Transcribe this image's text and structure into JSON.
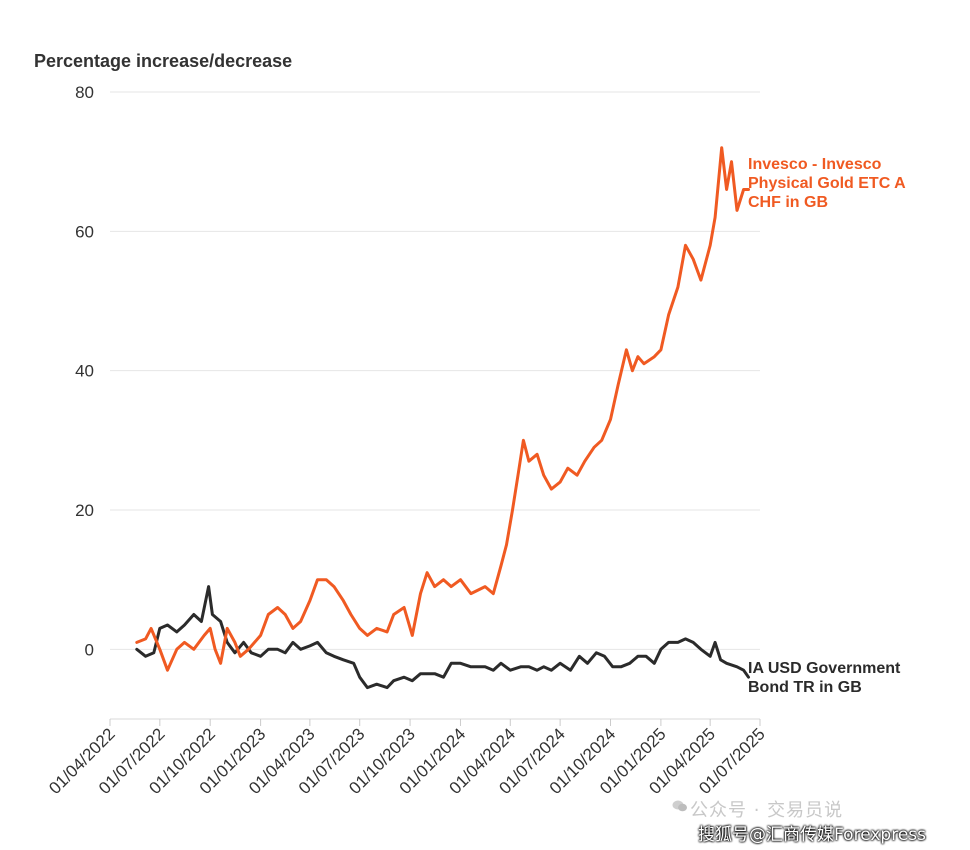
{
  "chart_data": {
    "type": "line",
    "ylabel": "Percentage increase/decrease",
    "ylim": [
      -10,
      80
    ],
    "yticks": [
      0,
      20,
      40,
      60,
      80
    ],
    "x_start": "01/04/2022",
    "x_end": "01/07/2025",
    "xticks": [
      "01/04/2022",
      "01/07/2022",
      "01/10/2022",
      "01/01/2023",
      "01/04/2023",
      "01/07/2023",
      "01/10/2023",
      "01/01/2024",
      "01/04/2024",
      "01/07/2024",
      "01/10/2024",
      "01/01/2025",
      "01/04/2025",
      "01/07/2025"
    ],
    "grid": "horizontal",
    "legend": "direct labels at line ends (right)",
    "series": [
      {
        "name": "Invesco - Invesco Physical Gold ETC A CHF in GB",
        "label_lines": [
          "Invesco - Invesco",
          "Physical Gold ETC A",
          "CHF in GB"
        ],
        "color": "#f05a22",
        "points": [
          [
            "2022-05-20",
            1
          ],
          [
            "2022-06-05",
            1.5
          ],
          [
            "2022-06-15",
            3
          ],
          [
            "2022-07-01",
            0
          ],
          [
            "2022-07-15",
            -3
          ],
          [
            "2022-08-01",
            0
          ],
          [
            "2022-08-15",
            1
          ],
          [
            "2022-09-01",
            0
          ],
          [
            "2022-09-20",
            2
          ],
          [
            "2022-10-01",
            3
          ],
          [
            "2022-10-10",
            0
          ],
          [
            "2022-10-20",
            -2
          ],
          [
            "2022-11-01",
            3
          ],
          [
            "2022-11-15",
            1
          ],
          [
            "2022-11-25",
            -1
          ],
          [
            "2022-12-10",
            0
          ],
          [
            "2023-01-01",
            2
          ],
          [
            "2023-01-15",
            5
          ],
          [
            "2023-02-01",
            6
          ],
          [
            "2023-02-15",
            5
          ],
          [
            "2023-03-01",
            3
          ],
          [
            "2023-03-15",
            4
          ],
          [
            "2023-04-01",
            7
          ],
          [
            "2023-04-15",
            10
          ],
          [
            "2023-05-01",
            10
          ],
          [
            "2023-05-15",
            9
          ],
          [
            "2023-06-01",
            7
          ],
          [
            "2023-06-15",
            5
          ],
          [
            "2023-07-01",
            3
          ],
          [
            "2023-07-15",
            2
          ],
          [
            "2023-08-01",
            3
          ],
          [
            "2023-08-20",
            2.5
          ],
          [
            "2023-09-01",
            5
          ],
          [
            "2023-09-20",
            6
          ],
          [
            "2023-10-05",
            2
          ],
          [
            "2023-10-20",
            8
          ],
          [
            "2023-11-01",
            11
          ],
          [
            "2023-11-15",
            9
          ],
          [
            "2023-12-01",
            10
          ],
          [
            "2023-12-15",
            9
          ],
          [
            "2024-01-01",
            10
          ],
          [
            "2024-01-20",
            8
          ],
          [
            "2024-02-15",
            9
          ],
          [
            "2024-03-01",
            8
          ],
          [
            "2024-03-15",
            12
          ],
          [
            "2024-03-25",
            15
          ],
          [
            "2024-04-05",
            20
          ],
          [
            "2024-04-15",
            25
          ],
          [
            "2024-04-25",
            30
          ],
          [
            "2024-05-05",
            27
          ],
          [
            "2024-05-20",
            28
          ],
          [
            "2024-06-01",
            25
          ],
          [
            "2024-06-15",
            23
          ],
          [
            "2024-07-01",
            24
          ],
          [
            "2024-07-15",
            26
          ],
          [
            "2024-08-01",
            25
          ],
          [
            "2024-08-15",
            27
          ],
          [
            "2024-09-01",
            29
          ],
          [
            "2024-09-15",
            30
          ],
          [
            "2024-10-01",
            33
          ],
          [
            "2024-10-15",
            38
          ],
          [
            "2024-10-30",
            43
          ],
          [
            "2024-11-10",
            40
          ],
          [
            "2024-11-20",
            42
          ],
          [
            "2024-12-01",
            41
          ],
          [
            "2024-12-20",
            42
          ],
          [
            "2025-01-01",
            43
          ],
          [
            "2025-01-15",
            48
          ],
          [
            "2025-02-01",
            52
          ],
          [
            "2025-02-15",
            58
          ],
          [
            "2025-03-01",
            56
          ],
          [
            "2025-03-15",
            53
          ],
          [
            "2025-04-01",
            58
          ],
          [
            "2025-04-10",
            62
          ],
          [
            "2025-04-22",
            72
          ],
          [
            "2025-05-01",
            66
          ],
          [
            "2025-05-10",
            70
          ],
          [
            "2025-05-20",
            63
          ],
          [
            "2025-06-01",
            66
          ],
          [
            "2025-06-10",
            66
          ]
        ]
      },
      {
        "name": "IA USD Government Bond TR in GB",
        "label_lines": [
          "IA USD Government",
          "Bond TR in GB"
        ],
        "color": "#2b2b2b",
        "points": [
          [
            "2022-05-20",
            0
          ],
          [
            "2022-06-05",
            -1
          ],
          [
            "2022-06-20",
            -0.5
          ],
          [
            "2022-07-01",
            3
          ],
          [
            "2022-07-15",
            3.5
          ],
          [
            "2022-08-01",
            2.5
          ],
          [
            "2022-08-15",
            3.5
          ],
          [
            "2022-09-01",
            5
          ],
          [
            "2022-09-15",
            4
          ],
          [
            "2022-09-28",
            9
          ],
          [
            "2022-10-05",
            5
          ],
          [
            "2022-10-20",
            4
          ],
          [
            "2022-11-01",
            1
          ],
          [
            "2022-11-15",
            -0.5
          ],
          [
            "2022-12-01",
            1
          ],
          [
            "2022-12-15",
            -0.5
          ],
          [
            "2023-01-01",
            -1
          ],
          [
            "2023-01-15",
            0
          ],
          [
            "2023-02-01",
            0
          ],
          [
            "2023-02-15",
            -0.5
          ],
          [
            "2023-03-01",
            1
          ],
          [
            "2023-03-15",
            0
          ],
          [
            "2023-04-01",
            0.5
          ],
          [
            "2023-04-15",
            1
          ],
          [
            "2023-05-01",
            -0.5
          ],
          [
            "2023-05-15",
            -1
          ],
          [
            "2023-06-01",
            -1.5
          ],
          [
            "2023-06-20",
            -2
          ],
          [
            "2023-07-01",
            -4
          ],
          [
            "2023-07-15",
            -5.5
          ],
          [
            "2023-08-01",
            -5
          ],
          [
            "2023-08-20",
            -5.5
          ],
          [
            "2023-09-01",
            -4.5
          ],
          [
            "2023-09-20",
            -4
          ],
          [
            "2023-10-05",
            -4.5
          ],
          [
            "2023-10-20",
            -3.5
          ],
          [
            "2023-11-01",
            -3.5
          ],
          [
            "2023-11-15",
            -3.5
          ],
          [
            "2023-12-01",
            -4
          ],
          [
            "2023-12-15",
            -2
          ],
          [
            "2024-01-01",
            -2
          ],
          [
            "2024-01-20",
            -2.5
          ],
          [
            "2024-02-15",
            -2.5
          ],
          [
            "2024-03-01",
            -3
          ],
          [
            "2024-03-15",
            -2
          ],
          [
            "2024-04-01",
            -3
          ],
          [
            "2024-04-20",
            -2.5
          ],
          [
            "2024-05-05",
            -2.5
          ],
          [
            "2024-05-20",
            -3
          ],
          [
            "2024-06-01",
            -2.5
          ],
          [
            "2024-06-15",
            -3
          ],
          [
            "2024-07-01",
            -2
          ],
          [
            "2024-07-20",
            -3
          ],
          [
            "2024-08-05",
            -1
          ],
          [
            "2024-08-20",
            -2
          ],
          [
            "2024-09-05",
            -0.5
          ],
          [
            "2024-09-20",
            -1
          ],
          [
            "2024-10-05",
            -2.5
          ],
          [
            "2024-10-20",
            -2.5
          ],
          [
            "2024-11-05",
            -2
          ],
          [
            "2024-11-20",
            -1
          ],
          [
            "2024-12-05",
            -1
          ],
          [
            "2024-12-20",
            -2
          ],
          [
            "2025-01-01",
            0
          ],
          [
            "2025-01-15",
            1
          ],
          [
            "2025-02-01",
            1
          ],
          [
            "2025-02-15",
            1.5
          ],
          [
            "2025-03-01",
            1
          ],
          [
            "2025-03-15",
            0
          ],
          [
            "2025-04-01",
            -1
          ],
          [
            "2025-04-10",
            1
          ],
          [
            "2025-04-20",
            -1.5
          ],
          [
            "2025-05-01",
            -2
          ],
          [
            "2025-05-20",
            -2.5
          ],
          [
            "2025-06-01",
            -3
          ],
          [
            "2025-06-10",
            -4
          ]
        ]
      }
    ]
  },
  "watermark": {
    "line1": "公众号 · 交易员说",
    "line2": "搜狐号@汇商传媒Forexpress"
  }
}
